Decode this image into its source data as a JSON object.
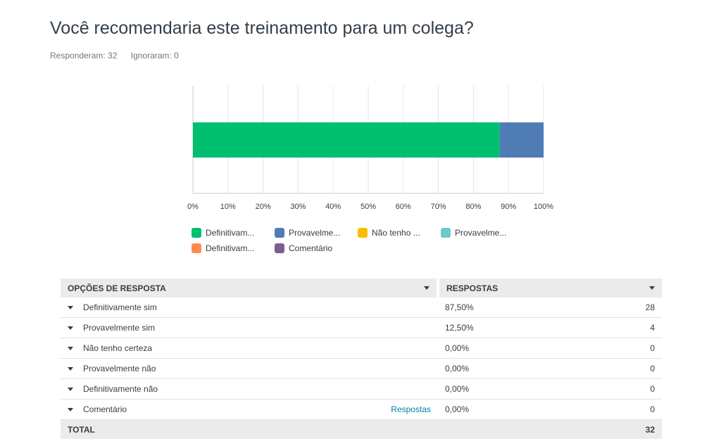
{
  "question": {
    "title": "Você recomendaria este treinamento para um colega?",
    "answered": "Responderam: 32",
    "skipped": "Ignoraram: 0"
  },
  "chart_data": {
    "type": "bar",
    "orientation": "horizontal",
    "stacked": true,
    "unit": "percent",
    "xlim": [
      0,
      100
    ],
    "x_ticks": [
      "0%",
      "10%",
      "20%",
      "30%",
      "40%",
      "50%",
      "60%",
      "70%",
      "80%",
      "90%",
      "100%"
    ],
    "grid": true,
    "legend_position": "bottom",
    "series": [
      {
        "name": "Definitivam...",
        "value": 87.5,
        "color": "#00bf6f"
      },
      {
        "name": "Provavelme...",
        "value": 12.5,
        "color": "#507cb6"
      },
      {
        "name": "Não tenho ...",
        "value": 0,
        "color": "#f9be00"
      },
      {
        "name": "Provavelme...",
        "value": 0,
        "color": "#6bc8cd"
      },
      {
        "name": "Definitivam...",
        "value": 0,
        "color": "#ff8b4f"
      },
      {
        "name": "Comentário",
        "value": 0,
        "color": "#7d5e90"
      }
    ]
  },
  "table": {
    "header_options": "OPÇÕES DE RESPOSTA",
    "header_responses": "RESPOSTAS",
    "rows": [
      {
        "label": "Definitivamente sim",
        "pct": "87,50%",
        "count": "28"
      },
      {
        "label": "Provavelmente sim",
        "pct": "12,50%",
        "count": "4"
      },
      {
        "label": "Não tenho certeza",
        "pct": "0,00%",
        "count": "0"
      },
      {
        "label": "Provavelmente não",
        "pct": "0,00%",
        "count": "0"
      },
      {
        "label": "Definitivamente não",
        "pct": "0,00%",
        "count": "0"
      },
      {
        "label": "Comentário",
        "pct": "0,00%",
        "count": "0",
        "link": "Respostas"
      }
    ],
    "total_label": "TOTAL",
    "total_count": "32"
  }
}
